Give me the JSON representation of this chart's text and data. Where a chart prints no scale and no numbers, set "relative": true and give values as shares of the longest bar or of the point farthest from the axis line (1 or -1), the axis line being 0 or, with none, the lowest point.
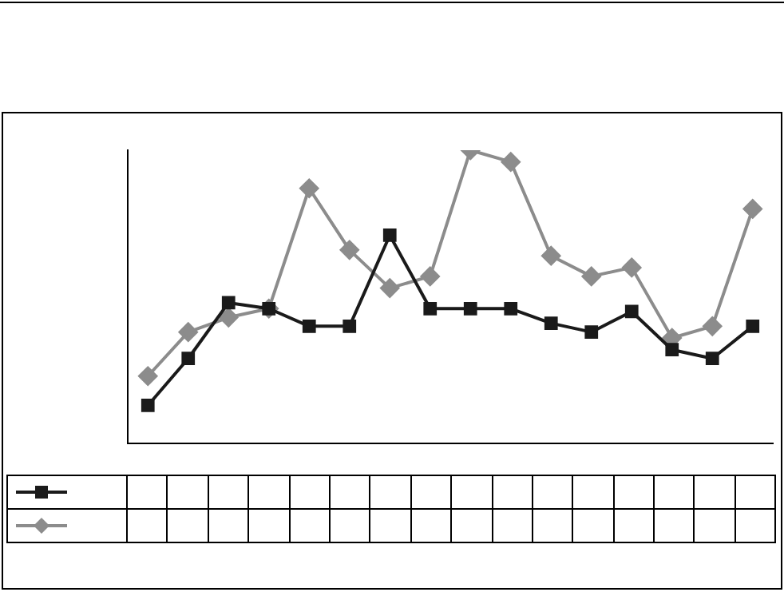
{
  "chart_data": {
    "type": "line",
    "relative": true,
    "categories": [
      null,
      null,
      null,
      null,
      null,
      null,
      null,
      null,
      null,
      null,
      null,
      null,
      null,
      null,
      null,
      null
    ],
    "series": [
      {
        "color": "#1a1a1a",
        "marker": "square",
        "values": [
          0.13,
          0.29,
          0.48,
          0.46,
          0.4,
          0.4,
          0.71,
          0.46,
          0.46,
          0.46,
          0.41,
          0.38,
          0.45,
          0.32,
          0.29,
          0.4
        ]
      },
      {
        "color": "#8c8c8c",
        "marker": "diamond",
        "values": [
          0.23,
          0.38,
          0.43,
          0.46,
          0.87,
          0.66,
          0.53,
          0.57,
          1,
          0.96,
          0.64,
          0.57,
          0.6,
          0.36,
          0.4,
          0.8
        ]
      }
    ],
    "grid": false,
    "legend": false
  }
}
